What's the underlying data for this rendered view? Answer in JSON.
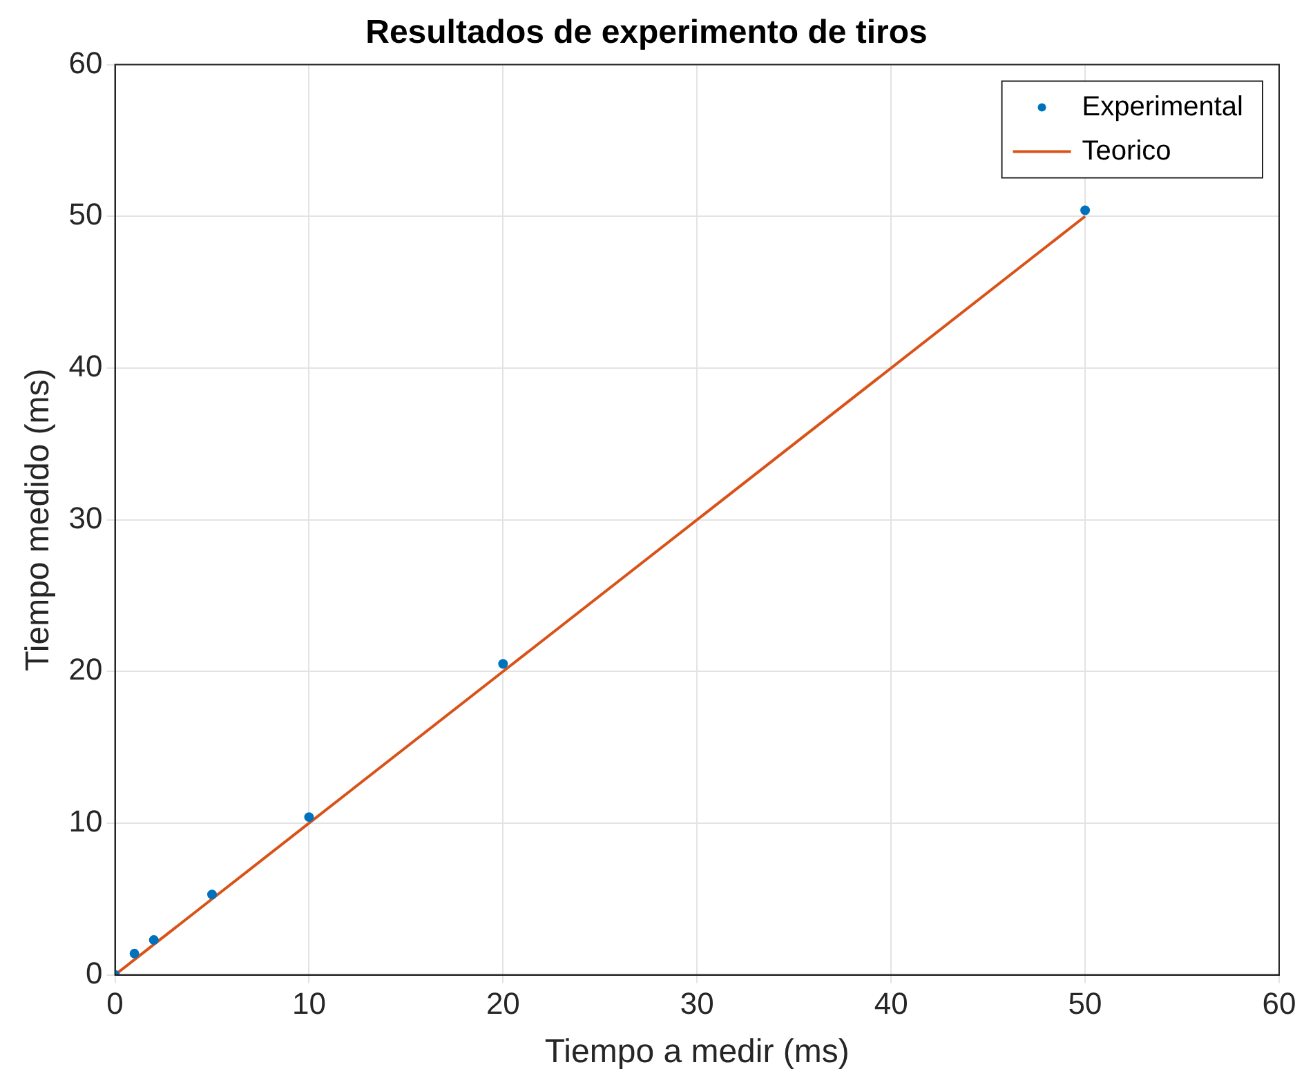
{
  "chart_data": {
    "type": "scatter",
    "title": "Resultados de experimento de tiros",
    "xlabel": "Tiempo a medir (ms)",
    "ylabel": "Tiempo medido (ms)",
    "xlim": [
      0,
      60
    ],
    "xticks": [
      0,
      10,
      20,
      30,
      40,
      50,
      60
    ],
    "ylim": [
      0,
      60
    ],
    "yticks": [
      0,
      10,
      20,
      30,
      40,
      50,
      60
    ],
    "grid": true,
    "legend": "top right",
    "series": [
      {
        "name": "Experimental",
        "marker": "circle",
        "color": "#0072bd",
        "x": [
          0,
          1,
          2,
          5,
          10,
          20,
          50
        ],
        "values": [
          0,
          1.4,
          2.3,
          5.3,
          10.4,
          20.5,
          50.4
        ]
      },
      {
        "name": "Teorico",
        "type": "line",
        "marker": "none",
        "line_style": "solid",
        "color": "#d95319",
        "x": [
          0,
          1,
          2,
          5,
          10,
          20,
          50
        ],
        "values": [
          0,
          1,
          2,
          5,
          10,
          20,
          50
        ]
      }
    ]
  }
}
